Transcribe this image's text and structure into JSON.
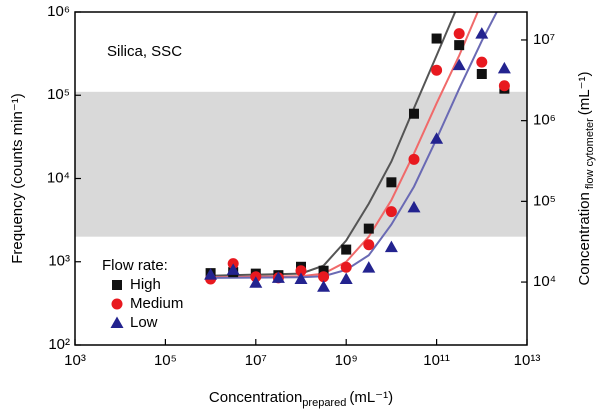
{
  "chart_data": {
    "type": "scatter",
    "annotation": "Silica, SSC",
    "x_label": "Concentration",
    "x_label_sub": "prepared",
    "x_label_unit": "(mL⁻¹)",
    "y_label": "Frequency (counts min⁻¹)",
    "y2_label": "Concentration",
    "y2_label_sub": "flow cytometer",
    "y2_label_unit": "(mL⁻¹)",
    "log_x": true,
    "log_y": true,
    "xlim": [
      1000,
      10000000000000
    ],
    "ylim": [
      100,
      1000000
    ],
    "y2lim": [
      1660,
      22200000
    ],
    "xticks": [
      {
        "value": 1000,
        "label": "10³"
      },
      {
        "value": 100000,
        "label": "10⁵"
      },
      {
        "value": 10000000,
        "label": "10⁷"
      },
      {
        "value": 1000000000,
        "label": "10⁹"
      },
      {
        "value": 100000000000,
        "label": "10¹¹"
      },
      {
        "value": 10000000000000,
        "label": "10¹³"
      }
    ],
    "yticks": [
      {
        "value": 100,
        "label": "10²"
      },
      {
        "value": 1000,
        "label": "10³"
      },
      {
        "value": 10000,
        "label": "10⁴"
      },
      {
        "value": 100000,
        "label": "10⁵"
      },
      {
        "value": 1000000,
        "label": "10⁶"
      }
    ],
    "y2ticks": [
      {
        "value": 10000,
        "label": "10⁴"
      },
      {
        "value": 100000,
        "label": "10⁵"
      },
      {
        "value": 1000000,
        "label": "10⁶"
      },
      {
        "value": 10000000,
        "label": "10⁷"
      }
    ],
    "band": [
      2000,
      110000
    ],
    "band_color": "#d9d9d9",
    "legend_title": "Flow rate:",
    "legend": "lower left",
    "x": [
      1000000,
      3160000,
      10000000,
      31600000,
      100000000,
      316000000,
      1000000000,
      3160000000,
      10000000000,
      31600000000,
      100000000000,
      316000000000,
      1000000000000,
      3160000000000
    ],
    "fit_x": [
      1000000,
      100000000,
      316000000,
      1000000000,
      3160000000,
      10000000000,
      31600000000,
      100000000000,
      316000000000,
      1000000000000,
      3160000000000
    ],
    "series": [
      {
        "name": "High",
        "color": "#111111",
        "line_color": "#555555",
        "marker": "square",
        "values": [
          730,
          750,
          720,
          690,
          870,
          780,
          1400,
          2500,
          9000,
          60000,
          480000,
          400000,
          180000,
          120000
        ],
        "fit": [
          680,
          720,
          900,
          1800,
          5000,
          16000,
          70000,
          300000,
          1300000,
          5000000,
          20000000
        ]
      },
      {
        "name": "Medium",
        "color": "#e8191f",
        "line_color": "#f06a6a",
        "marker": "circle",
        "values": [
          620,
          950,
          660,
          640,
          780,
          660,
          860,
          1600,
          4000,
          17000,
          200000,
          550000,
          250000,
          130000
        ],
        "fit": [
          650,
          670,
          720,
          1000,
          2000,
          5500,
          20000,
          80000,
          300000,
          1300000,
          5000000
        ]
      },
      {
        "name": "Low",
        "color": "#23238f",
        "line_color": "#6a6ab4",
        "marker": "triangle",
        "values": [
          700,
          800,
          560,
          640,
          620,
          500,
          620,
          850,
          1500,
          4500,
          30000,
          230000,
          550000,
          210000
        ],
        "fit": [
          640,
          650,
          670,
          800,
          1200,
          2800,
          8000,
          30000,
          120000,
          450000,
          1500000
        ]
      }
    ]
  }
}
